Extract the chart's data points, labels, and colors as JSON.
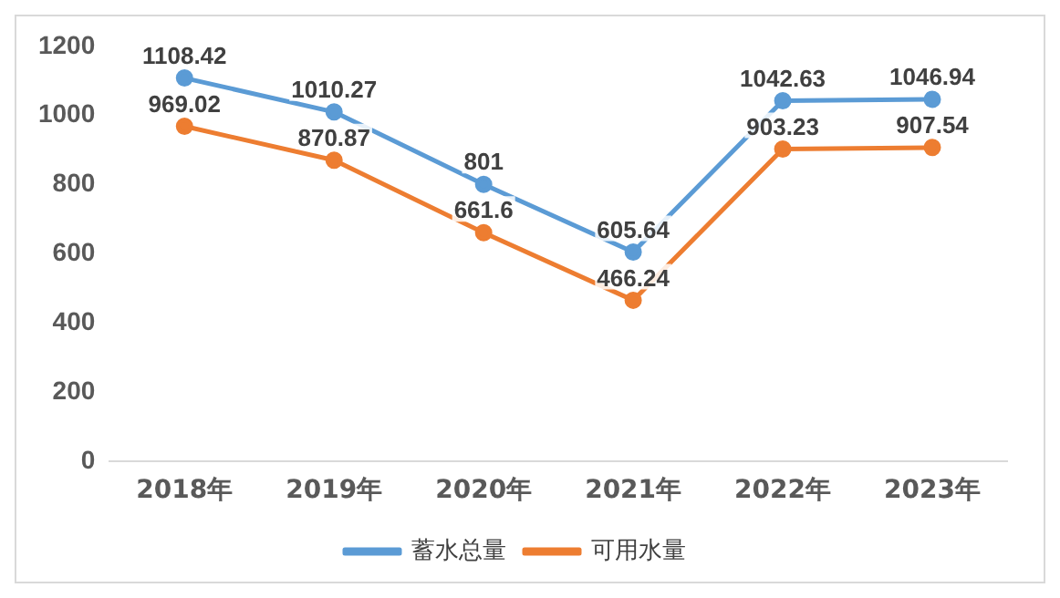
{
  "chart_data": {
    "type": "line",
    "categories": [
      "2018年",
      "2019年",
      "2020年",
      "2021年",
      "2022年",
      "2023年"
    ],
    "series": [
      {
        "name": "蓄水总量",
        "color": "#5b9bd5",
        "values": [
          1108.42,
          1010.27,
          801,
          605.64,
          1042.63,
          1046.94
        ]
      },
      {
        "name": "可用水量",
        "color": "#ed7d31",
        "values": [
          969.02,
          870.87,
          661.6,
          466.24,
          903.23,
          907.54
        ]
      }
    ],
    "ylim": [
      0,
      1200
    ],
    "yticks": [
      0,
      200,
      400,
      600,
      800,
      1000,
      1200
    ],
    "grid": false,
    "legend": "bottom",
    "marker": "circle",
    "line_style": "solid",
    "data_labels": true
  }
}
